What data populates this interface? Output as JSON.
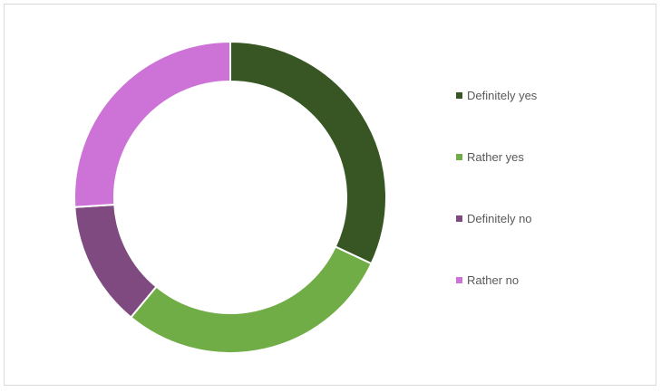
{
  "chart_data": {
    "type": "pie",
    "subtype": "donut",
    "title": "",
    "legend_position": "right",
    "slices": [
      {
        "label": "Definitely yes",
        "value": 32,
        "color": "#375623"
      },
      {
        "label": "Rather yes",
        "value": 29,
        "color": "#70ad47"
      },
      {
        "label": "Definitely no",
        "value": 13,
        "color": "#7e4a80"
      },
      {
        "label": "Rather no",
        "value": 26,
        "color": "#cd72d7"
      }
    ]
  }
}
